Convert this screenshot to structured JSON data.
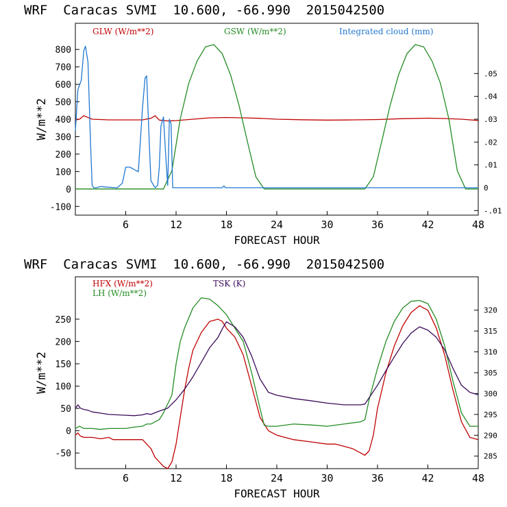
{
  "chart_data": [
    {
      "type": "line",
      "title": "WRF  Caracas SVMI  10.600, -66.990  2015042500",
      "xlabel": "FORECAST HOUR",
      "ylabel": "W/m**2",
      "xlim": [
        0,
        48
      ],
      "ylim": [
        -150,
        950
      ],
      "y2lim": [
        -0.012,
        0.072
      ],
      "x_ticks": [
        6,
        12,
        18,
        24,
        30,
        36,
        42,
        48
      ],
      "x_tick_labels": [
        "6",
        "12",
        "18",
        "24",
        "30",
        "36",
        "42",
        "48"
      ],
      "y_ticks": [
        -100,
        0,
        100,
        200,
        300,
        400,
        500,
        600,
        700,
        800
      ],
      "y_tick_labels": [
        "-100",
        "0",
        "100",
        "200",
        "300",
        "400",
        "500",
        "600",
        "700",
        "800"
      ],
      "y2_ticks": [
        -0.01,
        0,
        0.01,
        0.02,
        0.03,
        0.04,
        0.05
      ],
      "y2_tick_labels": [
        "-.01",
        "0",
        ".01",
        ".02",
        ".03",
        ".04",
        ".05"
      ],
      "series": [
        {
          "name": "GLW (W/m**2)",
          "color": "#c00000",
          "axis": "left",
          "x": [
            0,
            0.5,
            1,
            1.5,
            2,
            3,
            4,
            6,
            8,
            9,
            9.5,
            10,
            11,
            12,
            14,
            16,
            18,
            20,
            22,
            24,
            27,
            30,
            33,
            36,
            39,
            42,
            44,
            46,
            48
          ],
          "values": [
            395,
            400,
            420,
            410,
            400,
            398,
            396,
            396,
            396,
            405,
            420,
            395,
            390,
            392,
            400,
            408,
            410,
            408,
            405,
            400,
            397,
            395,
            396,
            398,
            403,
            406,
            404,
            400,
            393
          ]
        },
        {
          "name": "GSW (W/m**2)",
          "color": "#228b22",
          "axis": "left",
          "x": [
            0,
            10.5,
            11.5,
            12.5,
            13.5,
            14.5,
            15.5,
            16.5,
            17.5,
            18.5,
            19.5,
            20.5,
            21.5,
            22.5,
            34.5,
            35.5,
            36.5,
            37.5,
            38.5,
            39.5,
            40.5,
            41.5,
            42.5,
            43.5,
            44.5,
            45.5,
            46.5,
            48
          ],
          "values": [
            0,
            0,
            105,
            402,
            605,
            733,
            815,
            828,
            775,
            653,
            479,
            272,
            70,
            0,
            0,
            70,
            272,
            479,
            653,
            775,
            828,
            815,
            733,
            605,
            402,
            105,
            0,
            0
          ]
        },
        {
          "name": "Integrated cloud (mm)",
          "color": "#1f77d0",
          "axis": "right",
          "x": [
            0,
            0.3,
            0.7,
            1,
            1.2,
            1.5,
            1.8,
            2,
            2.2,
            2.5,
            3,
            4,
            5,
            5.6,
            6,
            6.5,
            7,
            7.5,
            8,
            8.3,
            8.5,
            8.8,
            9,
            9.5,
            9.8,
            10,
            10.2,
            10.5,
            10.8,
            11,
            11.2,
            11.4,
            11.6,
            17.5,
            17.7,
            17.9,
            48
          ],
          "values": [
            0.025,
            0.043,
            0.047,
            0.06,
            0.062,
            0.055,
            0.02,
            0.001,
            0,
            0,
            0.0005,
            0.0002,
            0,
            0.002,
            0.009,
            0.009,
            0.008,
            0.007,
            0.035,
            0.048,
            0.049,
            0.02,
            0.003,
            0,
            0.001,
            0.009,
            0.027,
            0.031,
            0.012,
            0.001,
            0.03,
            0.028,
            0,
            0,
            0.0008,
            0,
            0
          ]
        }
      ]
    },
    {
      "type": "line",
      "title": "WRF  Caracas SVMI  10.600, -66.990  2015042500",
      "xlabel": "FORECAST HOUR",
      "ylabel": "W/m**2",
      "xlim": [
        0,
        48
      ],
      "ylim": [
        -85,
        345
      ],
      "y2lim": [
        282,
        328
      ],
      "x_ticks": [
        6,
        12,
        18,
        24,
        30,
        36,
        42,
        48
      ],
      "x_tick_labels": [
        "6",
        "12",
        "18",
        "24",
        "30",
        "36",
        "42",
        "48"
      ],
      "y_ticks": [
        -50,
        0,
        50,
        100,
        150,
        200,
        250
      ],
      "y_tick_labels": [
        "-50",
        "0",
        "50",
        "100",
        "150",
        "200",
        "250"
      ],
      "y2_ticks": [
        285,
        290,
        295,
        300,
        305,
        310,
        315,
        320
      ],
      "y2_tick_labels": [
        "285",
        "290",
        "295",
        "300",
        "305",
        "310",
        "315",
        "320"
      ],
      "series": [
        {
          "name": "HFX (W/m**2)",
          "color": "#c00000",
          "axis": "left",
          "x": [
            0,
            0.3,
            0.6,
            1,
            2,
            3,
            4,
            4.5,
            5,
            6,
            7,
            8,
            8.5,
            9,
            9.5,
            10,
            10.5,
            11,
            11.5,
            12,
            12.5,
            13,
            13.5,
            14,
            15,
            16,
            17,
            17.5,
            18,
            19,
            20,
            21,
            22,
            23,
            24,
            26,
            28,
            30,
            31,
            32,
            33,
            34,
            34.5,
            35,
            35.5,
            36,
            37,
            38,
            39,
            40,
            41,
            42,
            43,
            44,
            45,
            46,
            47,
            48
          ],
          "values": [
            -10,
            -5,
            -12,
            -15,
            -15,
            -18,
            -15,
            -20,
            -20,
            -20,
            -20,
            -20,
            -30,
            -40,
            -60,
            -70,
            -80,
            -85,
            -70,
            -30,
            30,
            90,
            140,
            180,
            220,
            245,
            250,
            245,
            230,
            210,
            170,
            100,
            30,
            0,
            -10,
            -20,
            -25,
            -30,
            -30,
            -35,
            -40,
            -50,
            -55,
            -45,
            -10,
            50,
            130,
            190,
            235,
            265,
            280,
            270,
            230,
            170,
            90,
            20,
            -15,
            -20
          ]
        },
        {
          "name": "LH (W/m**2)",
          "color": "#228b22",
          "axis": "left",
          "x": [
            0,
            0.5,
            1,
            2,
            3,
            4,
            6,
            7,
            8,
            8.5,
            9,
            9.5,
            10,
            10.5,
            11,
            11.5,
            12,
            12.5,
            13,
            14,
            15,
            16,
            17,
            18,
            18.5,
            19,
            20,
            21,
            22,
            22.5,
            23,
            24,
            26,
            28,
            30,
            32,
            34,
            34.5,
            35,
            36,
            37,
            38,
            39,
            40,
            41,
            42,
            43,
            44,
            45,
            46,
            47,
            48
          ],
          "values": [
            5,
            10,
            5,
            5,
            3,
            5,
            5,
            8,
            10,
            15,
            15,
            20,
            25,
            40,
            60,
            80,
            150,
            200,
            230,
            275,
            298,
            295,
            280,
            260,
            245,
            230,
            200,
            130,
            50,
            12,
            10,
            10,
            15,
            13,
            10,
            15,
            20,
            25,
            70,
            140,
            200,
            245,
            275,
            290,
            292,
            285,
            250,
            190,
            110,
            40,
            10,
            10
          ]
        },
        {
          "name": "TSK (K)",
          "color": "#3b0a5a",
          "axis": "right",
          "x": [
            0,
            0.3,
            0.6,
            1,
            1.5,
            2,
            3,
            4,
            6,
            7,
            8,
            8.5,
            9,
            9.5,
            10,
            11,
            12,
            13,
            14,
            15,
            16,
            17,
            17.5,
            18,
            19,
            20,
            21,
            22,
            23,
            24,
            26,
            28,
            30,
            32,
            34,
            34.5,
            35,
            36,
            37,
            38,
            39,
            40,
            41,
            42,
            43,
            44,
            45,
            46,
            47,
            48
          ],
          "values": [
            296.4,
            297.3,
            296.5,
            296.2,
            296.0,
            295.6,
            295.3,
            295.0,
            294.8,
            294.7,
            294.9,
            295.2,
            295.0,
            295.4,
            295.8,
            296.5,
            298.5,
            301.0,
            304.0,
            307.5,
            311.0,
            313.5,
            315.5,
            317.2,
            316.0,
            313.5,
            309.0,
            303.5,
            300.3,
            299.6,
            298.8,
            298.3,
            297.7,
            297.3,
            297.3,
            297.5,
            299.0,
            302.0,
            305.5,
            308.8,
            312.0,
            314.5,
            316.0,
            315.2,
            313.5,
            310.5,
            306.0,
            302.0,
            300.3,
            299.7
          ]
        }
      ]
    }
  ]
}
